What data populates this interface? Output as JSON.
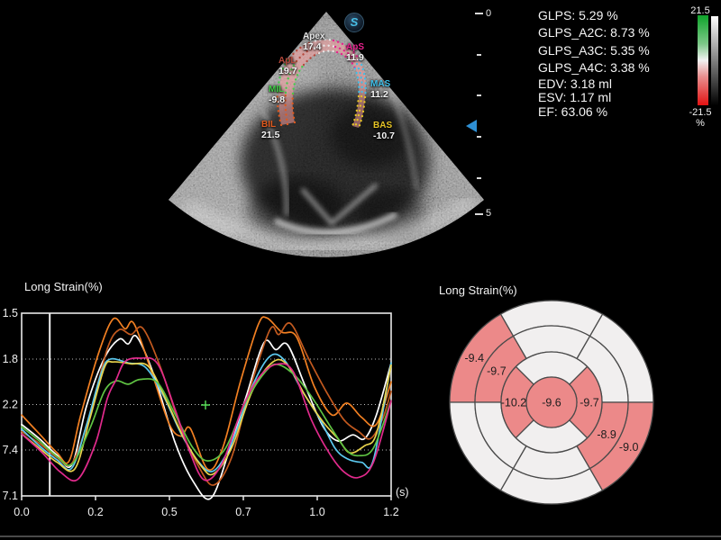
{
  "echo": {
    "logo_text": "S",
    "roi_color": "#f79e9e",
    "depth_ruler": {
      "top_label": "0",
      "bottom_label": "5"
    },
    "segments": [
      {
        "id": "apex",
        "name": "Apex",
        "value": "17.4",
        "color": "#e8e8e8"
      },
      {
        "id": "apl",
        "name": "ApL",
        "value": "19.7",
        "color": "#b5473a"
      },
      {
        "id": "aps",
        "name": "ApS",
        "value": "11.9",
        "color": "#e8218e"
      },
      {
        "id": "mil",
        "name": "MIL",
        "value": "-9.8",
        "color": "#43cc49"
      },
      {
        "id": "mas",
        "name": "MAS",
        "value": "11.2",
        "color": "#3fbfe8"
      },
      {
        "id": "bil",
        "name": "BIL",
        "value": "21.5",
        "color": "#e05a1e"
      },
      {
        "id": "bas",
        "name": "BAS",
        "value": "-10.7",
        "color": "#e6c426"
      }
    ]
  },
  "measurements": {
    "glps_lines": [
      {
        "text": "GLPS: 5.29 %"
      },
      {
        "text": "GLPS_A2C: 8.73 %"
      },
      {
        "text": "GLPS_A3C: 5.35 %"
      },
      {
        "text": "GLPS_A4C: 3.38 %"
      }
    ],
    "volume_lines": [
      {
        "text": "EDV: 3.18 ml"
      },
      {
        "text": "ESV: 1.17 ml"
      },
      {
        "text": "EF: 63.06 %"
      }
    ]
  },
  "colorbar": {
    "max_label": "21.5",
    "min_label": "-21.5",
    "unit": "%"
  },
  "chart_data": [
    {
      "type": "line",
      "title": "Long Strain(%)",
      "xlabel": "(s)",
      "ylabel": "",
      "xlim": [
        0,
        1.25
      ],
      "ylim": [
        -17.1,
        21.5
      ],
      "grid": "dotted-horizontal",
      "x_ticks": [
        {
          "t": 0.0,
          "label": "0.0"
        },
        {
          "t": 0.25,
          "label": "0.2"
        },
        {
          "t": 0.5,
          "label": "0.5"
        },
        {
          "t": 0.75,
          "label": "0.7"
        },
        {
          "t": 1.0,
          "label": "1.0"
        },
        {
          "t": 1.25,
          "label": "1.2"
        }
      ],
      "y_ticks": [
        {
          "v": 21.5,
          "label": "1.5"
        },
        {
          "v": 11.8,
          "label": "1.8"
        },
        {
          "v": 2.2,
          "label": "2.2"
        },
        {
          "v": -7.4,
          "label": "7.4"
        },
        {
          "v": -17.1,
          "label": "7.1"
        }
      ],
      "cursor_t": 0.095,
      "marker": {
        "t": 0.622,
        "v": 2.1,
        "color": "#58e058"
      },
      "series": [
        {
          "name": "white",
          "color": "#ffffff",
          "points": [
            [
              0,
              -2
            ],
            [
              0.06,
              -5
            ],
            [
              0.12,
              -8.5
            ],
            [
              0.17,
              -10.5
            ],
            [
              0.22,
              2
            ],
            [
              0.28,
              12
            ],
            [
              0.33,
              16
            ],
            [
              0.36,
              15
            ],
            [
              0.39,
              16.5
            ],
            [
              0.45,
              8
            ],
            [
              0.52,
              -6
            ],
            [
              0.58,
              -14
            ],
            [
              0.64,
              -17.6
            ],
            [
              0.7,
              -8
            ],
            [
              0.76,
              4
            ],
            [
              0.82,
              15.3
            ],
            [
              0.86,
              13.8
            ],
            [
              0.9,
              14.8
            ],
            [
              0.96,
              6
            ],
            [
              1.02,
              -2.5
            ],
            [
              1.07,
              -5.5
            ],
            [
              1.12,
              -4.2
            ],
            [
              1.16,
              -5
            ],
            [
              1.2,
              0
            ],
            [
              1.25,
              11
            ]
          ]
        },
        {
          "name": "orange",
          "color": "#f28022",
          "points": [
            [
              0,
              0
            ],
            [
              0.06,
              -4
            ],
            [
              0.12,
              -8
            ],
            [
              0.16,
              -9.8
            ],
            [
              0.2,
              0
            ],
            [
              0.26,
              13
            ],
            [
              0.31,
              20.3
            ],
            [
              0.35,
              18.2
            ],
            [
              0.38,
              19.3
            ],
            [
              0.44,
              9
            ],
            [
              0.5,
              -2
            ],
            [
              0.54,
              -4.5
            ],
            [
              0.57,
              -2.8
            ],
            [
              0.63,
              -11.5
            ],
            [
              0.68,
              -7
            ],
            [
              0.74,
              7
            ],
            [
              0.8,
              19
            ],
            [
              0.83,
              20.5
            ],
            [
              0.88,
              17.5
            ],
            [
              0.93,
              16.5
            ],
            [
              0.99,
              6
            ],
            [
              1.05,
              0
            ],
            [
              1.1,
              2.5
            ],
            [
              1.15,
              -0.5
            ],
            [
              1.2,
              -2
            ],
            [
              1.25,
              7
            ]
          ]
        },
        {
          "name": "chocolate",
          "color": "#c35a1f",
          "points": [
            [
              0,
              -3.5
            ],
            [
              0.06,
              -6
            ],
            [
              0.12,
              -9
            ],
            [
              0.17,
              -10.2
            ],
            [
              0.23,
              0
            ],
            [
              0.29,
              14
            ],
            [
              0.33,
              18
            ],
            [
              0.37,
              17
            ],
            [
              0.41,
              18.3
            ],
            [
              0.47,
              10
            ],
            [
              0.54,
              -3
            ],
            [
              0.6,
              -11
            ],
            [
              0.65,
              -14.8
            ],
            [
              0.71,
              -9
            ],
            [
              0.77,
              5
            ],
            [
              0.84,
              18
            ],
            [
              0.87,
              17
            ],
            [
              0.91,
              19.3
            ],
            [
              0.97,
              12
            ],
            [
              1.03,
              5
            ],
            [
              1.09,
              -1
            ],
            [
              1.14,
              -3.5
            ],
            [
              1.18,
              -5
            ],
            [
              1.22,
              -1
            ],
            [
              1.25,
              5
            ]
          ]
        },
        {
          "name": "cyan",
          "color": "#5bc8ee",
          "points": [
            [
              0,
              -3
            ],
            [
              0.06,
              -6.5
            ],
            [
              0.12,
              -9.5
            ],
            [
              0.17,
              -11.2
            ],
            [
              0.22,
              -2
            ],
            [
              0.27,
              9
            ],
            [
              0.3,
              11.8
            ],
            [
              0.36,
              11
            ],
            [
              0.42,
              10
            ],
            [
              0.48,
              4
            ],
            [
              0.54,
              -4
            ],
            [
              0.6,
              -10
            ],
            [
              0.65,
              -11.8
            ],
            [
              0.71,
              -6
            ],
            [
              0.78,
              6
            ],
            [
              0.84,
              12.4
            ],
            [
              0.89,
              11.5
            ],
            [
              0.95,
              5
            ],
            [
              1.01,
              -1
            ],
            [
              1.06,
              -7
            ],
            [
              1.1,
              -9.2
            ],
            [
              1.15,
              -10
            ],
            [
              1.19,
              -9.5
            ],
            [
              1.25,
              11
            ]
          ]
        },
        {
          "name": "yellow",
          "color": "#e9d34c",
          "points": [
            [
              0,
              -4
            ],
            [
              0.06,
              -7
            ],
            [
              0.12,
              -10
            ],
            [
              0.18,
              -11.4
            ],
            [
              0.23,
              -1
            ],
            [
              0.28,
              10
            ],
            [
              0.31,
              11.2
            ],
            [
              0.37,
              10.8
            ],
            [
              0.43,
              10.2
            ],
            [
              0.49,
              3
            ],
            [
              0.55,
              -5
            ],
            [
              0.61,
              -11
            ],
            [
              0.65,
              -12.4
            ],
            [
              0.71,
              -7
            ],
            [
              0.78,
              5
            ],
            [
              0.85,
              11.2
            ],
            [
              0.9,
              10.5
            ],
            [
              0.96,
              4
            ],
            [
              1.02,
              -1.5
            ],
            [
              1.07,
              -5
            ],
            [
              1.11,
              -8
            ],
            [
              1.16,
              -6.5
            ],
            [
              1.2,
              -4
            ],
            [
              1.25,
              10.5
            ]
          ]
        },
        {
          "name": "green",
          "color": "#5fc343",
          "points": [
            [
              0,
              -2.5
            ],
            [
              0.06,
              -5.5
            ],
            [
              0.12,
              -8.8
            ],
            [
              0.17,
              -10.4
            ],
            [
              0.23,
              -3
            ],
            [
              0.28,
              5
            ],
            [
              0.32,
              7.2
            ],
            [
              0.36,
              6.5
            ],
            [
              0.4,
              7.5
            ],
            [
              0.46,
              6.8
            ],
            [
              0.52,
              0
            ],
            [
              0.58,
              -7
            ],
            [
              0.63,
              -9.7
            ],
            [
              0.69,
              -7
            ],
            [
              0.76,
              3
            ],
            [
              0.83,
              9.5
            ],
            [
              0.87,
              10.6
            ],
            [
              0.93,
              8
            ],
            [
              0.99,
              3
            ],
            [
              1.05,
              -3
            ],
            [
              1.1,
              -7.5
            ],
            [
              1.14,
              -8.6
            ],
            [
              1.19,
              -7
            ],
            [
              1.25,
              3
            ]
          ]
        },
        {
          "name": "magenta",
          "color": "#e12a8c",
          "points": [
            [
              0,
              -4
            ],
            [
              0.07,
              -8
            ],
            [
              0.13,
              -12
            ],
            [
              0.19,
              -13.6
            ],
            [
              0.25,
              -6
            ],
            [
              0.29,
              3.5
            ],
            [
              0.32,
              7.5
            ],
            [
              0.35,
              11.3
            ],
            [
              0.4,
              12
            ],
            [
              0.46,
              10.8
            ],
            [
              0.52,
              1
            ],
            [
              0.57,
              -8
            ],
            [
              0.62,
              -13.8
            ],
            [
              0.68,
              -10
            ],
            [
              0.75,
              2
            ],
            [
              0.81,
              8.5
            ],
            [
              0.87,
              10.8
            ],
            [
              0.92,
              9
            ],
            [
              0.98,
              -1
            ],
            [
              1.04,
              -8
            ],
            [
              1.09,
              -12
            ],
            [
              1.14,
              -13.2
            ],
            [
              1.19,
              -10
            ],
            [
              1.25,
              3
            ]
          ]
        }
      ]
    },
    {
      "type": "heatmap",
      "subtype": "bullseye-17-segment",
      "title": "Long Strain(%)",
      "segment_fill": "#ec8989",
      "empty_fill": "#f1efef",
      "line_color": "#4a4a4a",
      "label_color": "#1d1d1d",
      "center": {
        "value": "-9.6",
        "filled": true
      },
      "rings": [
        {
          "name": "basal",
          "r_in": 85,
          "r_out": 113,
          "segments": [
            {
              "a0": 0,
              "a1": 60,
              "filled": false
            },
            {
              "a0": 60,
              "a1": 120,
              "filled": false
            },
            {
              "a0": 120,
              "a1": 180,
              "filled": true,
              "value": "-9.4"
            },
            {
              "a0": 180,
              "a1": 240,
              "filled": false
            },
            {
              "a0": 240,
              "a1": 300,
              "filled": false
            },
            {
              "a0": 300,
              "a1": 360,
              "filled": true,
              "value": "-9.0"
            }
          ]
        },
        {
          "name": "mid",
          "r_in": 56,
          "r_out": 85,
          "segments": [
            {
              "a0": 0,
              "a1": 60,
              "filled": false
            },
            {
              "a0": 60,
              "a1": 120,
              "filled": false
            },
            {
              "a0": 120,
              "a1": 180,
              "filled": true,
              "value": "-9.7"
            },
            {
              "a0": 180,
              "a1": 240,
              "filled": false
            },
            {
              "a0": 240,
              "a1": 300,
              "filled": false
            },
            {
              "a0": 300,
              "a1": 360,
              "filled": true,
              "value": "-8.9"
            }
          ]
        },
        {
          "name": "apical",
          "r_in": 28,
          "r_out": 56,
          "segments": [
            {
              "a0": 45,
              "a1": 135,
              "filled": false
            },
            {
              "a0": 135,
              "a1": 225,
              "filled": true,
              "value": "-10.2"
            },
            {
              "a0": 225,
              "a1": 315,
              "filled": false
            },
            {
              "a0": 315,
              "a1": 405,
              "filled": true,
              "value": "-9.7"
            }
          ]
        }
      ]
    }
  ]
}
